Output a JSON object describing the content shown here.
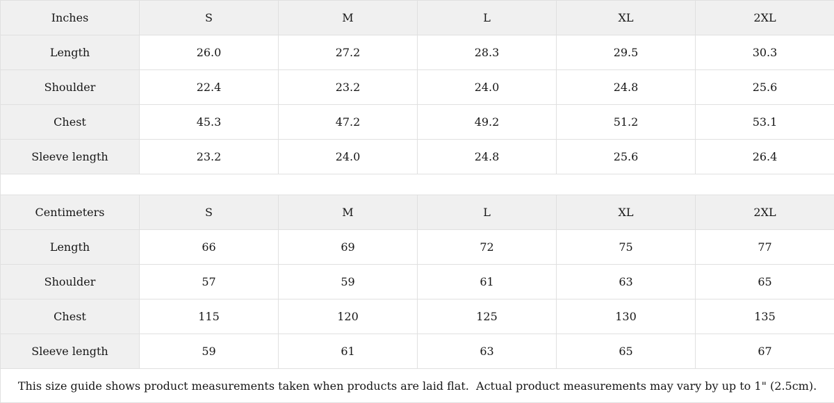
{
  "colors": {
    "header_background": "#f0f0f0",
    "cell_background": "#ffffff",
    "border": "#e0e0e0",
    "text": "#161616"
  },
  "chart_data": [
    {
      "type": "table",
      "title": "Inches",
      "columns": [
        "S",
        "M",
        "L",
        "XL",
        "2XL"
      ],
      "rows": [
        {
          "label": "Length",
          "values": [
            "26.0",
            "27.2",
            "28.3",
            "29.5",
            "30.3"
          ]
        },
        {
          "label": "Shoulder",
          "values": [
            "22.4",
            "23.2",
            "24.0",
            "24.8",
            "25.6"
          ]
        },
        {
          "label": "Chest",
          "values": [
            "45.3",
            "47.2",
            "49.2",
            "51.2",
            "53.1"
          ]
        },
        {
          "label": "Sleeve length",
          "values": [
            "23.2",
            "24.0",
            "24.8",
            "25.6",
            "26.4"
          ]
        }
      ]
    },
    {
      "type": "table",
      "title": "Centimeters",
      "columns": [
        "S",
        "M",
        "L",
        "XL",
        "2XL"
      ],
      "rows": [
        {
          "label": "Length",
          "values": [
            "66",
            "69",
            "72",
            "75",
            "77"
          ]
        },
        {
          "label": "Shoulder",
          "values": [
            "57",
            "59",
            "61",
            "63",
            "65"
          ]
        },
        {
          "label": "Chest",
          "values": [
            "115",
            "120",
            "125",
            "130",
            "135"
          ]
        },
        {
          "label": "Sleeve length",
          "values": [
            "59",
            "61",
            "63",
            "65",
            "67"
          ]
        }
      ]
    }
  ],
  "footer": {
    "note": "This size guide shows product measurements taken when products are laid flat.  Actual product measurements may vary by up to 1\" (2.5cm)."
  }
}
